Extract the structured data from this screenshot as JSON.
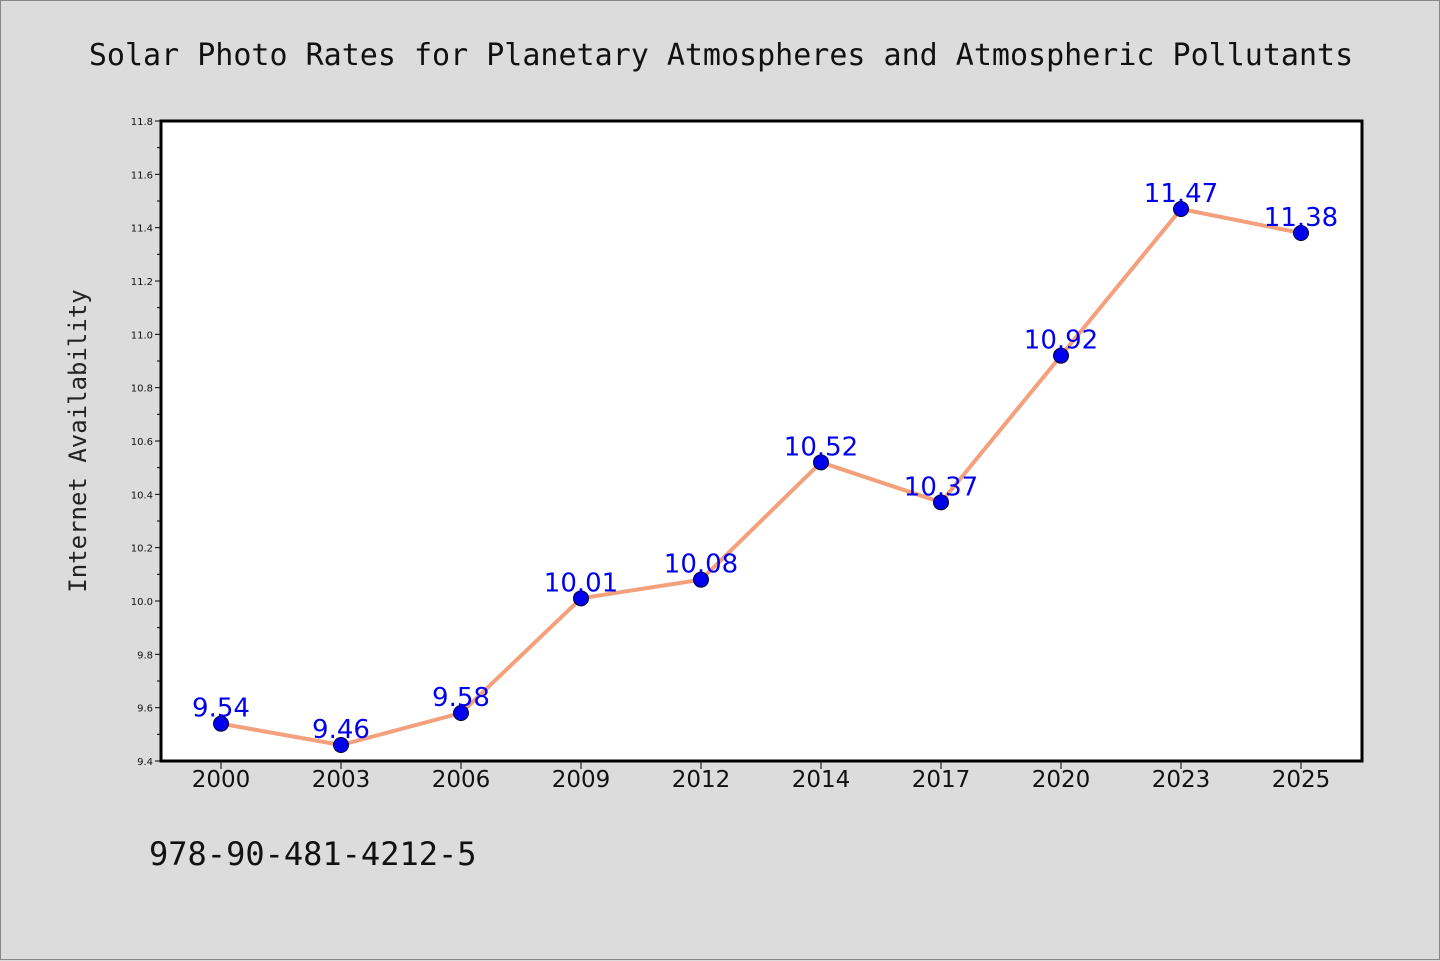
{
  "chart_data": {
    "type": "line",
    "title": "Solar Photo Rates for Planetary Atmospheres and Atmospheric Pollutants",
    "ylabel": "Internet Availability",
    "xlabel": "",
    "categories": [
      "2000",
      "2003",
      "2006",
      "2009",
      "2012",
      "2014",
      "2017",
      "2020",
      "2023",
      "2025"
    ],
    "series": [
      {
        "values": [
          9.54,
          9.46,
          9.58,
          10.01,
          10.08,
          10.52,
          10.37,
          10.92,
          11.47,
          11.38
        ]
      }
    ],
    "data_labels": [
      "9.54",
      "9.46",
      "9.58",
      "10.01",
      "10.08",
      "10.52",
      "10.37",
      "10.92",
      "11.47",
      "11.38"
    ],
    "ylim": [
      9.4,
      11.8
    ],
    "yticks": [
      "9.4",
      "9.6",
      "9.8",
      "10.0",
      "10.2",
      "10.4",
      "10.6",
      "10.8",
      "11.0",
      "11.2",
      "11.4",
      "11.6",
      "11.8"
    ],
    "grid": false,
    "legend": "none",
    "colors": {
      "line": "#f4a07c",
      "marker": "#0000ee",
      "marker_edge": "#000033",
      "data_label": "#0000ee",
      "plot_bg": "#ffffff",
      "figure_bg": "#dcdcdc"
    }
  },
  "footer": {
    "isbn": "978-90-481-4212-5"
  }
}
